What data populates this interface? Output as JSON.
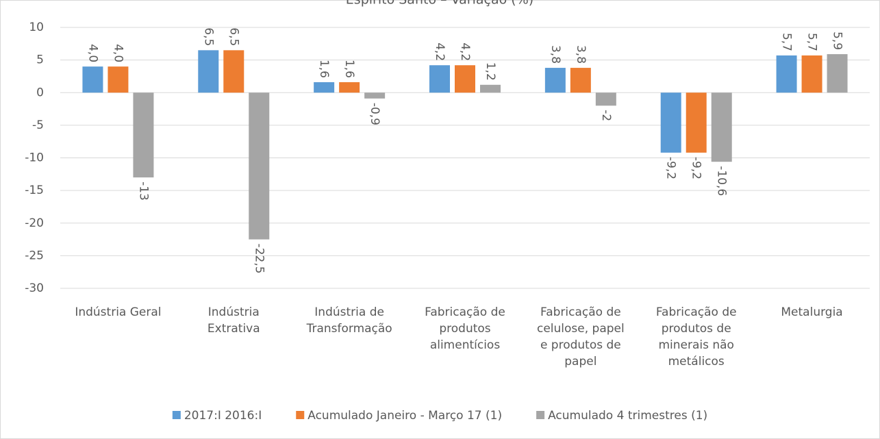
{
  "chart_data": {
    "type": "bar",
    "title": "Espírito Santo – Variação (%)",
    "categories": [
      "Indústria Geral",
      "Indústria Extrativa",
      "Indústria de Transformação",
      "Fabricação de produtos alimentícios",
      "Fabricação de celulose, papel e produtos de papel",
      "Fabricação de produtos de minerais não metálicos",
      "Metalurgia"
    ],
    "series": [
      {
        "name": "2017:I 2016:I",
        "color": "#5b9bd5",
        "values": [
          4.0,
          6.5,
          1.6,
          4.2,
          3.8,
          -9.2,
          5.7
        ],
        "value_labels": [
          "4,0",
          "6,5",
          "1,6",
          "4,2",
          "3,8",
          "-9,2",
          "5,7"
        ]
      },
      {
        "name": "Acumulado Janeiro - Março 17 (1)",
        "color": "#ed7d31",
        "values": [
          4.0,
          6.5,
          1.6,
          4.2,
          3.8,
          -9.2,
          5.7
        ],
        "value_labels": [
          "4,0",
          "6,5",
          "1,6",
          "4,2",
          "3,8",
          "-9,2",
          "5,7"
        ]
      },
      {
        "name": "Acumulado 4 trimestres (1)",
        "color": "#a5a5a5",
        "values": [
          -13,
          -22.5,
          -0.9,
          1.2,
          -2,
          -10.6,
          5.9
        ],
        "value_labels": [
          "-13",
          "-22,5",
          "-0,9",
          "1,2",
          "-2",
          "-10,6",
          "5,9"
        ]
      }
    ],
    "ylim": [
      -30,
      10
    ],
    "yticks": [
      -30,
      -25,
      -20,
      -15,
      -10,
      -5,
      0,
      5,
      10
    ],
    "grid": true,
    "legend": "bottom"
  }
}
